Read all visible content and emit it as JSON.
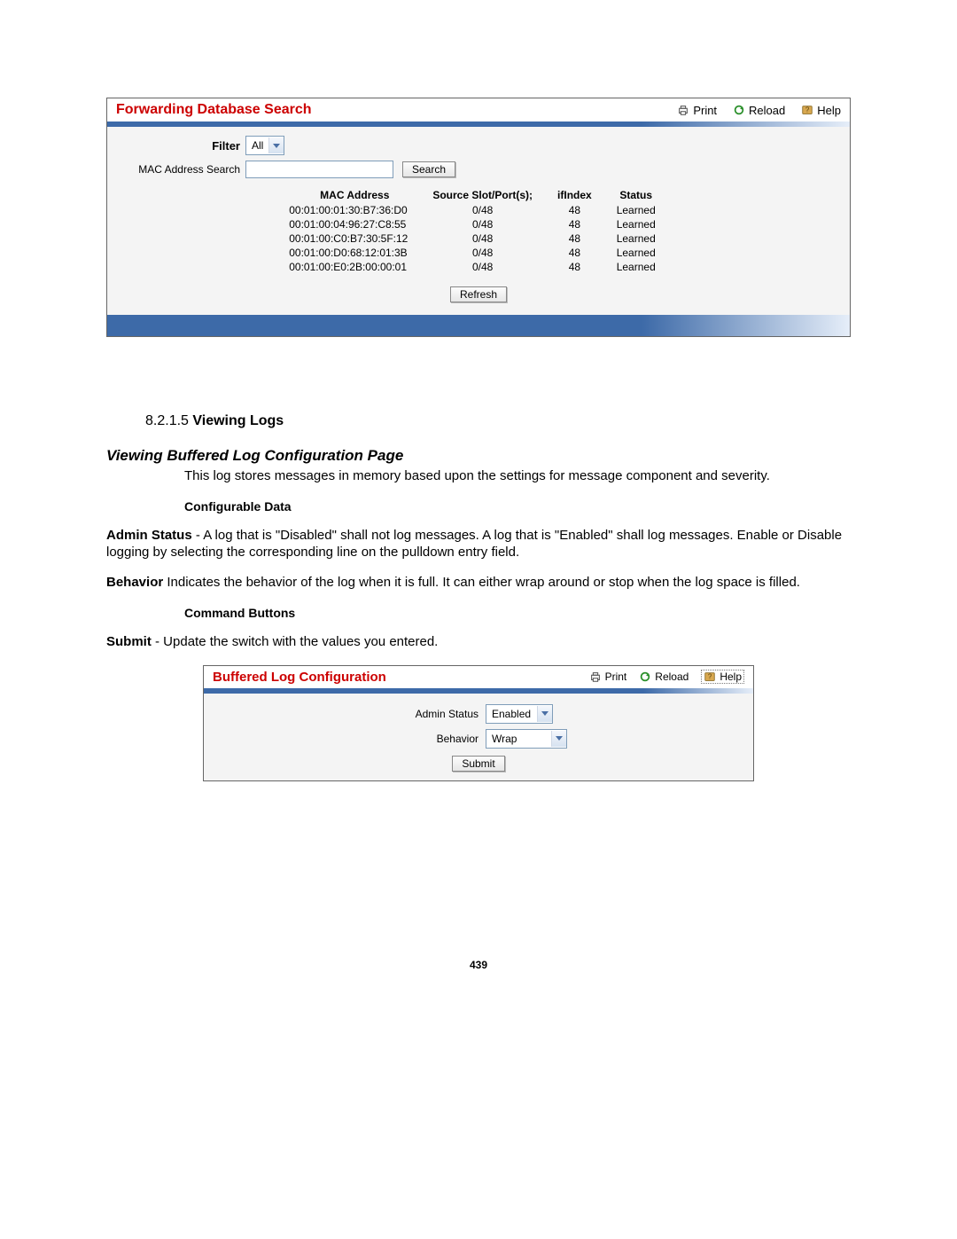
{
  "panel1": {
    "title": "Forwarding Database Search",
    "print": "Print",
    "reload": "Reload",
    "help": "Help",
    "filter_label": "Filter",
    "filter_value": "All",
    "mac_search_label": "MAC Address Search",
    "search_btn": "Search",
    "refresh_btn": "Refresh",
    "columns": {
      "mac": "MAC Address",
      "src": "Source Slot/Port(s);",
      "ifi": "ifIndex",
      "status": "Status"
    },
    "rows": [
      {
        "mac": "00:01:00:01:30:B7:36:D0",
        "src": "0/48",
        "ifi": "48",
        "status": "Learned"
      },
      {
        "mac": "00:01:00:04:96:27:C8:55",
        "src": "0/48",
        "ifi": "48",
        "status": "Learned"
      },
      {
        "mac": "00:01:00:C0:B7:30:5F:12",
        "src": "0/48",
        "ifi": "48",
        "status": "Learned"
      },
      {
        "mac": "00:01:00:D0:68:12:01:3B",
        "src": "0/48",
        "ifi": "48",
        "status": "Learned"
      },
      {
        "mac": "00:01:00:E0:2B:00:00:01",
        "src": "0/48",
        "ifi": "48",
        "status": "Learned"
      }
    ]
  },
  "doc": {
    "sec_num": "8.2.1.5 ",
    "sec_title": "Viewing Logs",
    "sub1": "Viewing Buffered Log Configuration Page",
    "intro": "This log stores messages in memory based upon the settings for message component and severity.",
    "cfgdata_hdr": "Configurable Data",
    "admin_b": "Admin Status",
    "admin_t": " - A log that is \"Disabled\" shall not log messages. A log that is \"Enabled\" shall log messages. Enable or Disable logging by selecting the corresponding line on the pulldown entry field.",
    "beh_b": "Behavior",
    "beh_t": " Indicates the behavior of the log when it is full. It can either wrap around or stop when the log space is filled.",
    "cmd_hdr": "Command Buttons",
    "submit_b": "Submit",
    "submit_t": " - Update the switch with the values you entered.",
    "page_num": "439"
  },
  "panel2": {
    "title": "Buffered Log Configuration",
    "print": "Print",
    "reload": "Reload",
    "help": "Help",
    "admin_label": "Admin Status",
    "admin_value": "Enabled",
    "beh_label": "Behavior",
    "beh_value": "Wrap",
    "submit_btn": "Submit"
  }
}
